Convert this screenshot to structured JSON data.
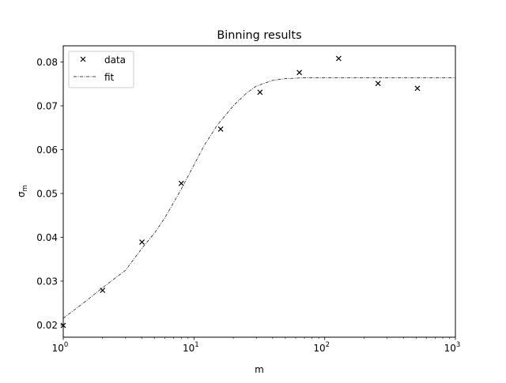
{
  "chart_data": {
    "type": "scatter",
    "title": "Binning results",
    "xlabel": "m",
    "ylabel_symbol": "σ",
    "ylabel_subscript": "m",
    "xscale": "log",
    "xlim": [
      1,
      1000
    ],
    "ylim": [
      0.0172,
      0.0837
    ],
    "x_ticks": [
      {
        "value": 1,
        "base": "10",
        "exp": "0"
      },
      {
        "value": 10,
        "base": "10",
        "exp": "1"
      },
      {
        "value": 100,
        "base": "10",
        "exp": "2"
      },
      {
        "value": 1000,
        "base": "10",
        "exp": "3"
      }
    ],
    "y_ticks": [
      {
        "value": 0.02,
        "label": "0.02"
      },
      {
        "value": 0.03,
        "label": "0.03"
      },
      {
        "value": 0.04,
        "label": "0.04"
      },
      {
        "value": 0.05,
        "label": "0.05"
      },
      {
        "value": 0.06,
        "label": "0.06"
      },
      {
        "value": 0.07,
        "label": "0.07"
      },
      {
        "value": 0.08,
        "label": "0.08"
      }
    ],
    "legend": {
      "placement": "top-left",
      "entries": [
        {
          "label": "data",
          "marker": "x"
        },
        {
          "label": "fit",
          "line": "dash-dot"
        }
      ]
    },
    "grid": false,
    "series": [
      {
        "name": "data",
        "marker": "x",
        "color": "#000000",
        "x": [
          1,
          2,
          4,
          8,
          16,
          32,
          64,
          128,
          256,
          512
        ],
        "y": [
          0.0199,
          0.0279,
          0.0389,
          0.0523,
          0.0647,
          0.0731,
          0.0776,
          0.0808,
          0.0751,
          0.074
        ]
      },
      {
        "name": "fit",
        "line": "dash-dot",
        "color": "#000000",
        "x": [
          1,
          1.5,
          2,
          3,
          4,
          5,
          6,
          8,
          10,
          12,
          15,
          20,
          25,
          30,
          40,
          50,
          70,
          100,
          200,
          500,
          1000
        ],
        "y": [
          0.0215,
          0.0255,
          0.0285,
          0.0325,
          0.0375,
          0.041,
          0.0445,
          0.051,
          0.0565,
          0.061,
          0.0655,
          0.07,
          0.0728,
          0.0745,
          0.0758,
          0.0762,
          0.0764,
          0.0764,
          0.0764,
          0.0764,
          0.0764
        ]
      }
    ]
  }
}
